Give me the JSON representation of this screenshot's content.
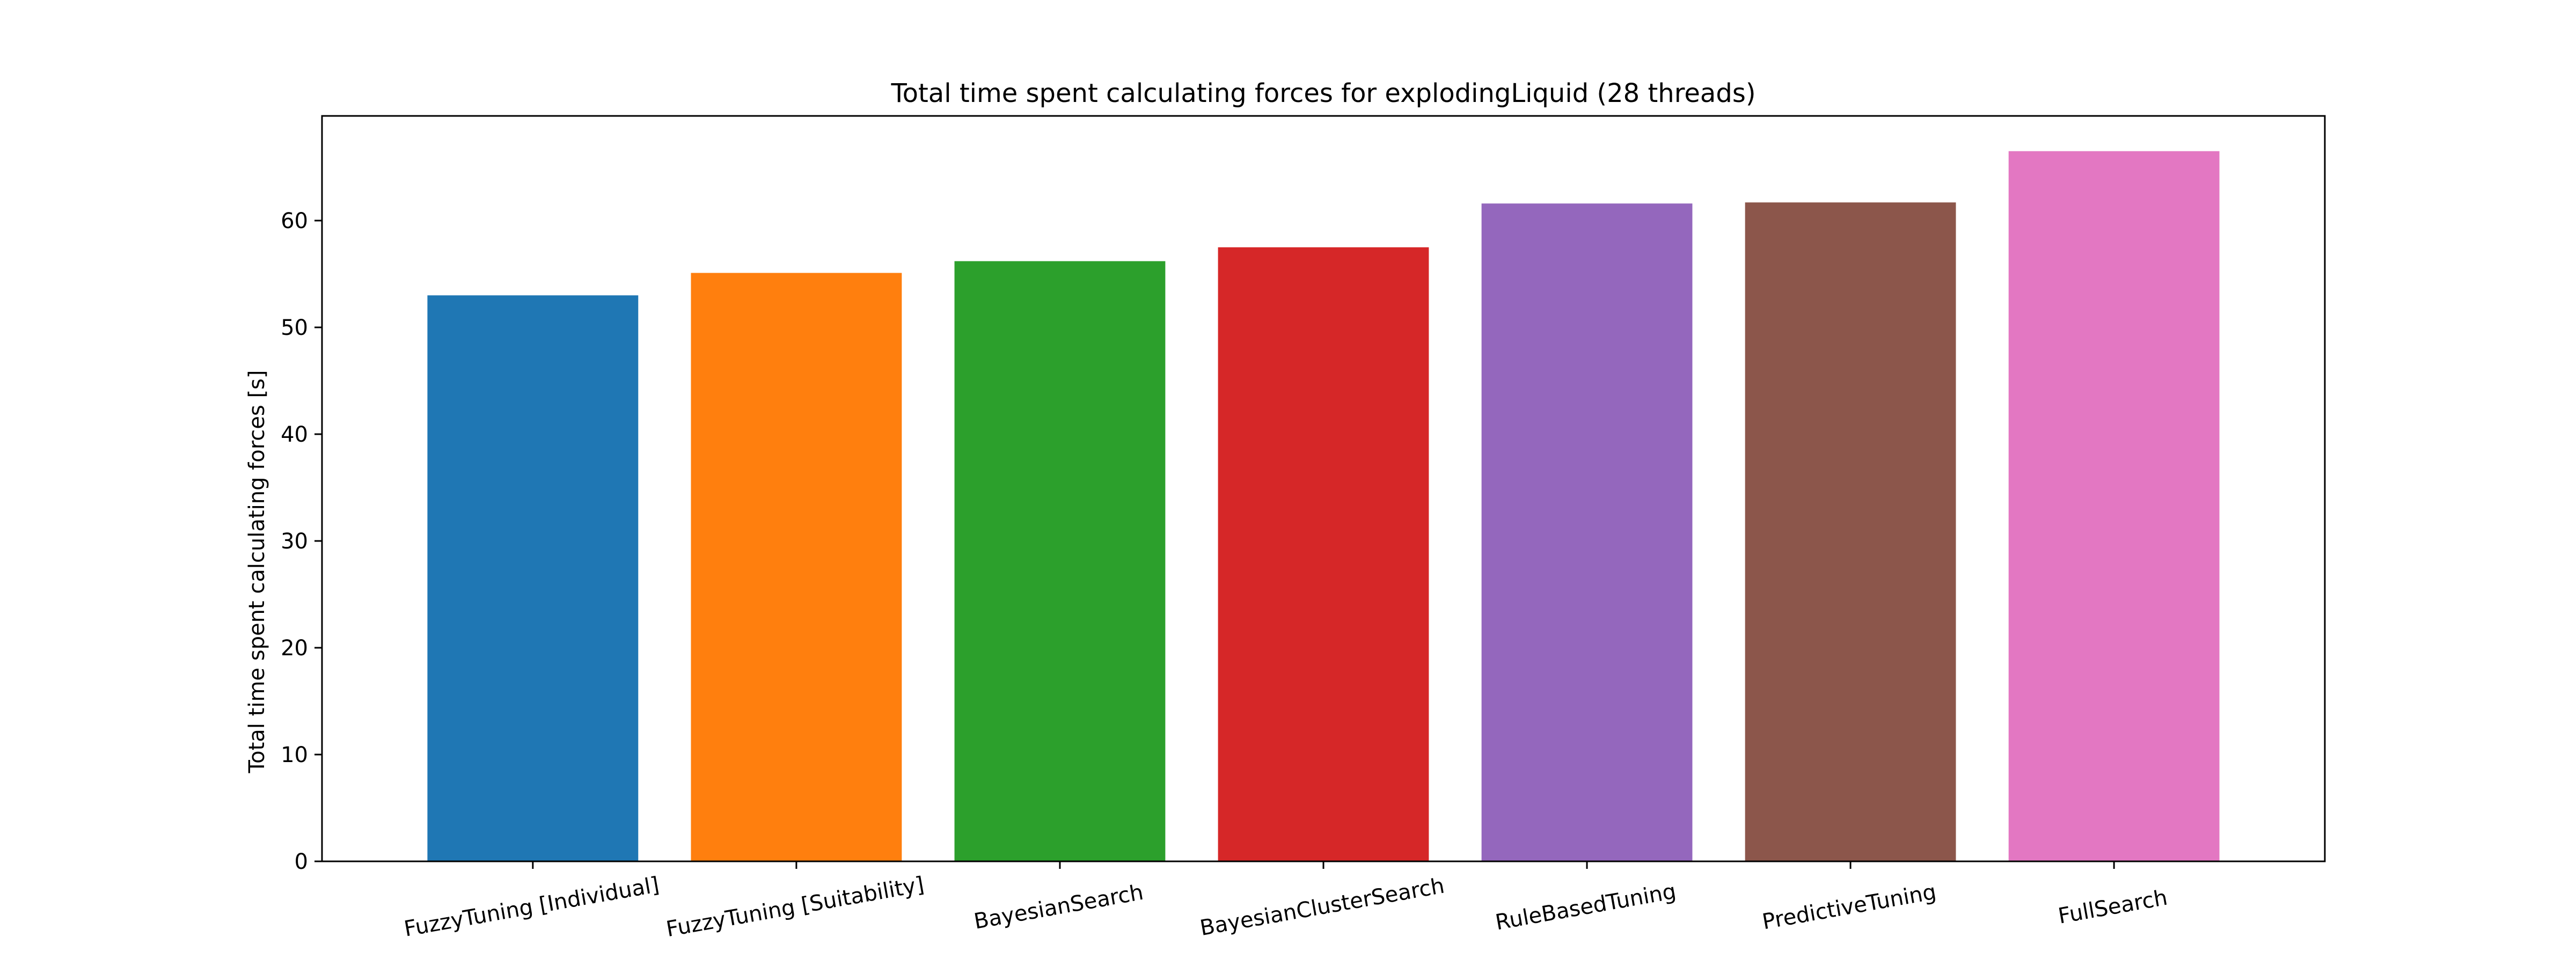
{
  "chart_data": {
    "type": "bar",
    "title": "Total time spent calculating forces for explodingLiquid (28 threads)",
    "xlabel": "",
    "ylabel": "Total time spent calculating forces [s]",
    "categories": [
      "FuzzyTuning [Individual]",
      "FuzzyTuning [Suitability]",
      "BayesianSearch",
      "BayesianClusterSearch",
      "RuleBasedTuning",
      "PredictiveTuning",
      "FullSearch"
    ],
    "values": [
      53.0,
      55.1,
      56.2,
      57.5,
      61.6,
      61.7,
      66.5
    ],
    "colors": [
      "#1f77b4",
      "#ff7f0e",
      "#2ca02c",
      "#d62728",
      "#9467bd",
      "#8c564b",
      "#e377c2"
    ],
    "ylim": [
      0,
      69.8
    ],
    "yticks": [
      0,
      10,
      20,
      30,
      40,
      50,
      60
    ],
    "grid": false,
    "legend": "none"
  }
}
